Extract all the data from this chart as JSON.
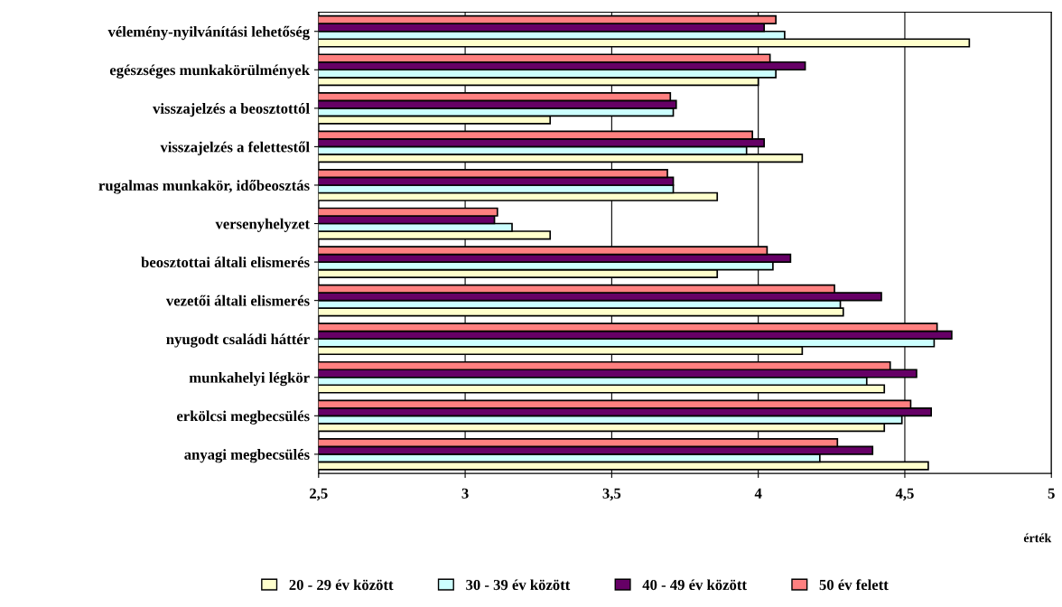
{
  "chart_data": {
    "type": "bar",
    "orientation": "horizontal",
    "xlabel": "érték",
    "categories": [
      "vélemény-nyilvánítási lehetőség",
      "egészséges munkakörülmények",
      "visszajelzés a beosztottól",
      "visszajelzés a felettestől",
      "rugalmas munkakör, időbeosztás",
      "versenyhelyzet",
      "beosztottai általi elismerés",
      "vezetői általi elismerés",
      "nyugodt családi háttér",
      "munkahelyi légkör",
      "erkölcsi megbecsülés",
      "anyagi megbecsülés"
    ],
    "series": [
      {
        "name": "20 - 29 év között",
        "color": "#ffffcc",
        "values": [
          4.72,
          4.0,
          3.29,
          4.15,
          3.86,
          3.29,
          3.86,
          4.29,
          4.15,
          4.43,
          4.43,
          4.58
        ]
      },
      {
        "name": "30 - 39 év között",
        "color": "#ccffff",
        "values": [
          4.09,
          4.06,
          3.71,
          3.96,
          3.71,
          3.16,
          4.05,
          4.28,
          4.6,
          4.37,
          4.49,
          4.21
        ]
      },
      {
        "name": "40 - 49 év között",
        "color": "#660066",
        "values": [
          4.02,
          4.16,
          3.72,
          4.02,
          3.71,
          3.1,
          4.11,
          4.42,
          4.66,
          4.54,
          4.59,
          4.39
        ]
      },
      {
        "name": "50 év felett",
        "color": "#ff8080",
        "values": [
          4.06,
          4.04,
          3.7,
          3.98,
          3.69,
          3.11,
          4.03,
          4.26,
          4.61,
          4.45,
          4.52,
          4.27
        ]
      }
    ],
    "xlim": [
      2.5,
      5
    ],
    "xticks": [
      {
        "value": 2.5,
        "label": "2,5"
      },
      3,
      {
        "value": 3.5,
        "label": "3,5"
      },
      4,
      {
        "value": 4.5,
        "label": "4,5"
      },
      5
    ],
    "grid": "x",
    "legend": "bottom"
  }
}
